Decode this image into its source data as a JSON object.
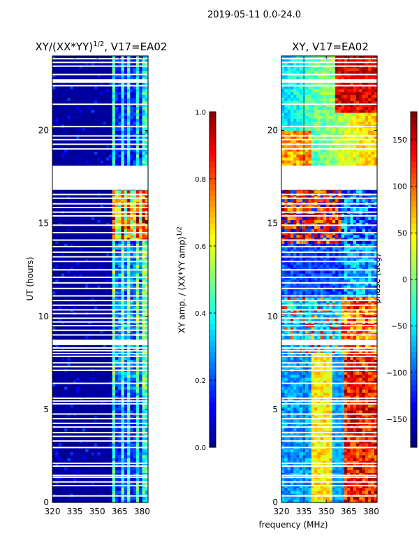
{
  "suptitle": "2019-05-11 0.0-24.0",
  "chart_data": [
    {
      "type": "heatmap",
      "title": "XY/(XX*YY)",
      "title_exp": "1/2",
      "title_tail": ", V17=EA02",
      "xlabel": "",
      "ylabel": "UT (hours)",
      "xlim": [
        320,
        384
      ],
      "ylim": [
        0,
        24
      ],
      "xticks": [
        320,
        335,
        350,
        365,
        380
      ],
      "yticks": [
        0,
        5,
        10,
        15,
        20
      ],
      "colorbar": {
        "label": "XY amp. / (XX*YY amp)",
        "label_exp": "1/2",
        "range": [
          0.0,
          1.0
        ],
        "ticks": [
          "0.0",
          "0.2",
          "0.4",
          "0.6",
          "0.8",
          "1.0"
        ],
        "colormap": "jet"
      },
      "blank_hours": [
        0.35,
        0.9,
        1.1,
        1.35,
        1.45,
        1.95,
        2.1,
        2.95,
        3.3,
        3.55,
        3.75,
        4.05,
        4.25,
        4.5,
        4.75,
        5.3,
        5.45,
        5.6,
        6.4,
        7.1,
        7.3,
        7.5,
        7.85,
        8.0,
        8.15,
        8.3,
        9.0,
        9.25,
        9.5,
        9.7,
        9.9,
        10.15,
        10.35,
        10.6,
        10.85,
        11.1,
        11.5,
        11.8,
        12.1,
        12.5,
        12.95,
        13.2,
        13.45,
        13.75,
        14.1,
        14.5,
        14.9,
        15.4,
        15.6,
        15.85,
        16.05,
        16.35,
        16.55,
        19.0,
        19.25,
        19.5,
        19.7,
        20.2,
        21.4,
        22.4,
        22.6,
        23.0,
        23.45,
        23.65,
        23.85
      ],
      "blank_band_hours": [
        [
          8.45,
          8.75
        ],
        [
          16.8,
          18.1
        ],
        [
          22.55,
          22.75
        ]
      ]
    },
    {
      "type": "heatmap",
      "title": "XY, V17=EA02",
      "xlabel": "frequency (MHz)",
      "ylabel": "",
      "xlim": [
        320,
        384
      ],
      "ylim": [
        0,
        24
      ],
      "xticks": [
        320,
        335,
        350,
        365,
        380
      ],
      "yticks": [
        0,
        5,
        10,
        15,
        20
      ],
      "colorbar": {
        "label": "phase (deg)",
        "range": [
          -180,
          180
        ],
        "ticks": [
          "150",
          "100",
          "50",
          "0",
          "−50",
          "−100",
          "−150"
        ],
        "tick_values": [
          150,
          100,
          50,
          0,
          -50,
          -100,
          -150
        ],
        "colormap": "jet"
      }
    }
  ]
}
